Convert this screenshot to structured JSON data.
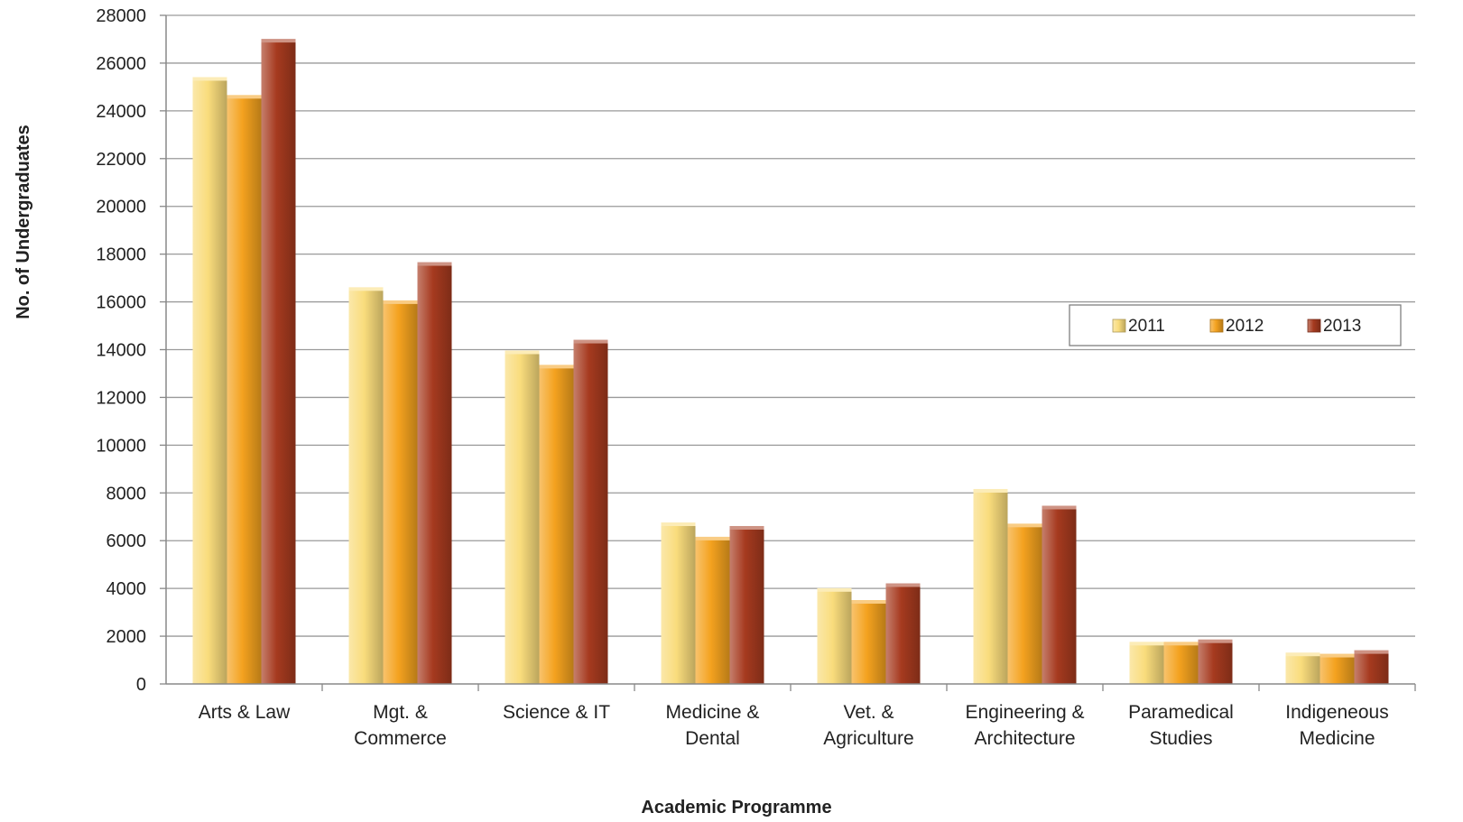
{
  "chart_data": {
    "type": "bar",
    "title": "",
    "xlabel": "Academic Programme",
    "ylabel": "No. of Undergraduates",
    "ylim": [
      0,
      28000
    ],
    "yticks": [
      0,
      2000,
      4000,
      6000,
      8000,
      10000,
      12000,
      14000,
      16000,
      18000,
      20000,
      22000,
      24000,
      26000,
      28000
    ],
    "grid": true,
    "legend_position": "right",
    "categories": [
      [
        "Arts & Law"
      ],
      [
        "Mgt. &",
        "Commerce"
      ],
      [
        "Science & IT"
      ],
      [
        "Medicine &",
        "Dental"
      ],
      [
        "Vet. &",
        "Agriculture"
      ],
      [
        "Engineering &",
        "Architecture"
      ],
      [
        "Paramedical",
        "Studies"
      ],
      [
        "Indigeneous",
        "Medicine"
      ]
    ],
    "series": [
      {
        "name": "2011",
        "color": "#F9DC7C",
        "values": [
          25300,
          16500,
          13850,
          6650,
          3900,
          8050,
          1650,
          1200
        ]
      },
      {
        "name": "2012",
        "color": "#F4A21F",
        "values": [
          24550,
          15950,
          13250,
          6050,
          3400,
          6600,
          1650,
          1150
        ]
      },
      {
        "name": "2013",
        "color": "#A63A1F",
        "values": [
          26900,
          17550,
          14300,
          6500,
          4100,
          7350,
          1750,
          1300
        ]
      }
    ]
  }
}
